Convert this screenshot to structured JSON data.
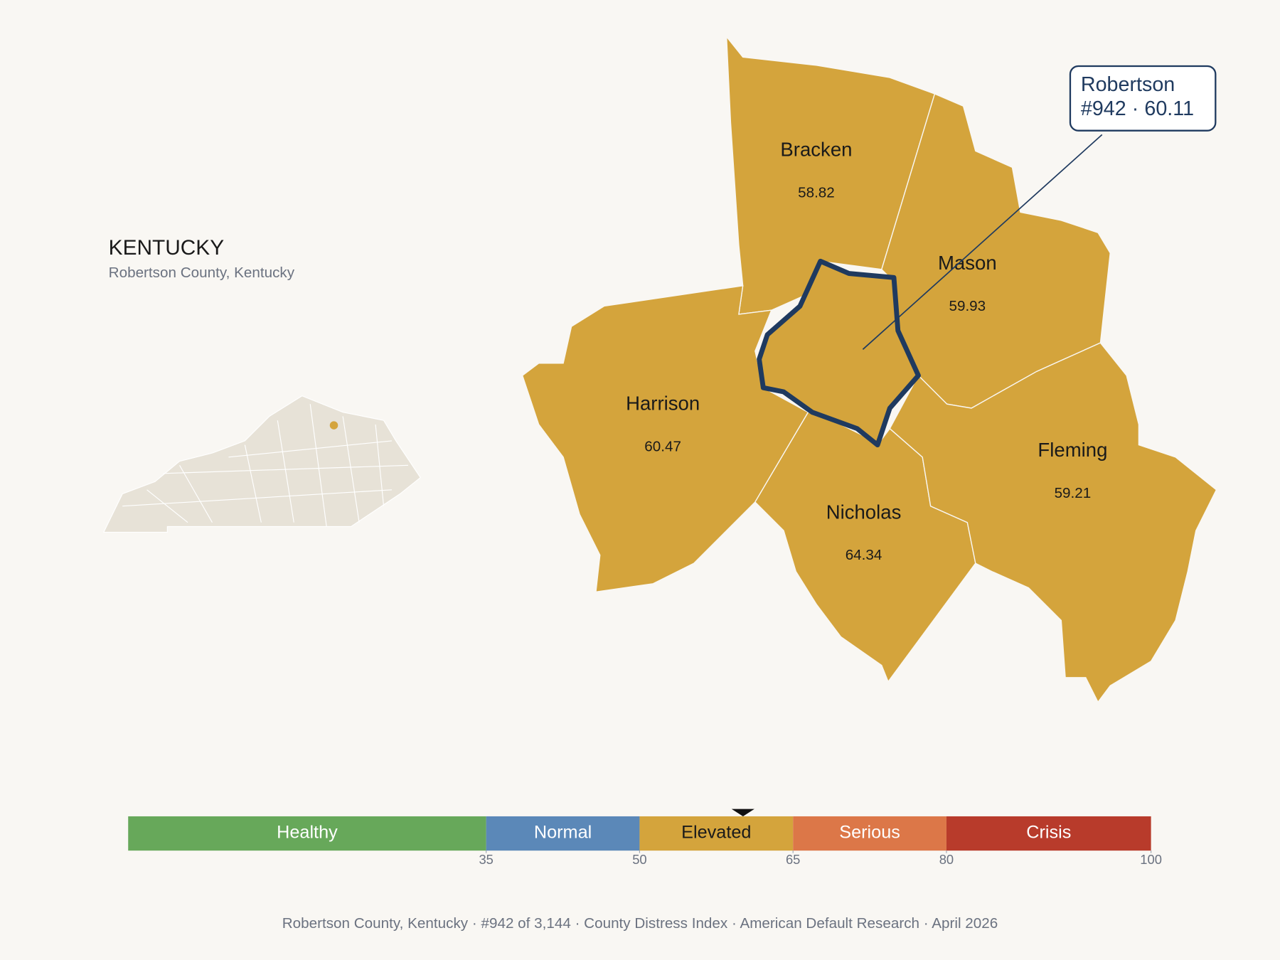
{
  "header": {
    "state": "KENTUCKY",
    "subtitle": "Robertson County, Kentucky"
  },
  "callout": {
    "name": "Robertson",
    "rank": "#942",
    "separator": "·",
    "score": 60.11
  },
  "counties": [
    {
      "name": "Bracken",
      "value": 58.82
    },
    {
      "name": "Mason",
      "value": 59.93
    },
    {
      "name": "Harrison",
      "value": 60.47
    },
    {
      "name": "Nicholas",
      "value": 64.34
    },
    {
      "name": "Fleming",
      "value": 59.21
    }
  ],
  "fill_color": "#d4a43c",
  "scale": {
    "xlim": [
      0,
      100
    ],
    "xticks": [
      35,
      50,
      65,
      80,
      100
    ],
    "bands": [
      {
        "label": "Healthy",
        "color": "#67a85a",
        "text_color": "#ffffff"
      },
      {
        "label": "Normal",
        "color": "#5b88b8",
        "text_color": "#ffffff"
      },
      {
        "label": "Elevated",
        "color": "#d4a43c",
        "text_color": "#1a1a1a"
      },
      {
        "label": "Serious",
        "color": "#dc7748",
        "text_color": "#ffffff"
      },
      {
        "label": "Crisis",
        "color": "#b83b2b",
        "text_color": "#ffffff"
      }
    ]
  },
  "footer": "Robertson County, Kentucky  ·  #942 of 3,144  ·  County Distress Index  ·  American Default Research  ·  April 2026"
}
